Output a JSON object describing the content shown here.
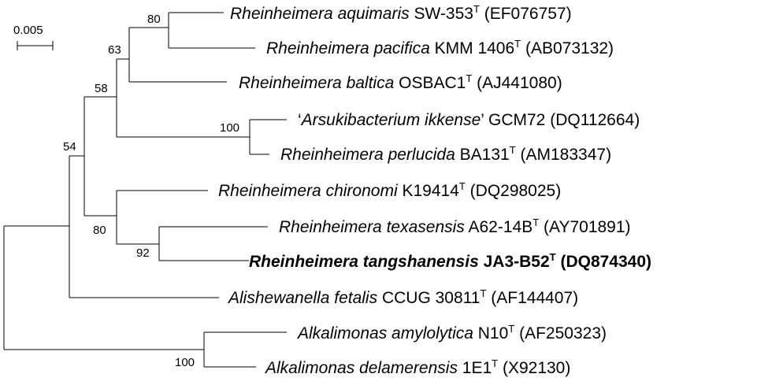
{
  "scale_bar": {
    "label": "0.005"
  },
  "taxa": [
    {
      "id": "aquimaris",
      "name": "Rheinheimera aquimaris",
      "strain": "SW-353",
      "type_strain": "T",
      "accession": "(EF076757)",
      "bold": false
    },
    {
      "id": "pacifica",
      "name": "Rheinheimera pacifica",
      "strain": "KMM 1406",
      "type_strain": "T",
      "accession": "(AB073132)",
      "bold": false
    },
    {
      "id": "baltica",
      "name": "Rheinheimera baltica",
      "strain": "OSBAC1",
      "type_strain": "T",
      "accession": "(AJ441080)",
      "bold": false
    },
    {
      "id": "arsukibacterium",
      "name": "Arsukibacterium ikkense",
      "quoted": true,
      "strain": "GCM72",
      "type_strain": "",
      "accession": "(DQ112664)",
      "bold": false
    },
    {
      "id": "perlucida",
      "name": "Rheinheimera perlucida",
      "strain": "BA131",
      "type_strain": "T",
      "accession": "(AM183347)",
      "bold": false
    },
    {
      "id": "chironomi",
      "name": "Rheinheimera chironomi",
      "strain": "K19414",
      "type_strain": "T",
      "accession": "(DQ298025)",
      "bold": false
    },
    {
      "id": "texasensis",
      "name": "Rheinheimera texasensis",
      "strain": "A62-14B",
      "type_strain": "T",
      "accession": "(AY701891)",
      "bold": false
    },
    {
      "id": "tangshanensis",
      "name": "Rheinheimera tangshanensis",
      "strain": "JA3-B52",
      "type_strain": "T",
      "accession": "(DQ874340)",
      "bold": true
    },
    {
      "id": "alishewanella",
      "name": "Alishewanella fetalis",
      "strain": "CCUG 30811",
      "type_strain": "T",
      "accession": "(AF144407)",
      "bold": false
    },
    {
      "id": "amylolytica",
      "name": "Alkalimonas amylolytica",
      "strain": "N10",
      "type_strain": "T",
      "accession": "(AF250323)",
      "bold": false
    },
    {
      "id": "delamerensis",
      "name": "Alkalimonas delamerensis",
      "strain": "1E1",
      "type_strain": "T",
      "accession": "(X92130)",
      "bold": false
    }
  ],
  "bootstrap": {
    "aquimaris_pacifica": "80",
    "with_baltica": "63",
    "rheinheimera_upper": "58",
    "arsukibacterium_perlucida": "100",
    "texasensis_tangshanensis": "92",
    "chironomi_clade": "80",
    "rheinheimera_alishewanella": "54",
    "alkalimonas": "100"
  }
}
